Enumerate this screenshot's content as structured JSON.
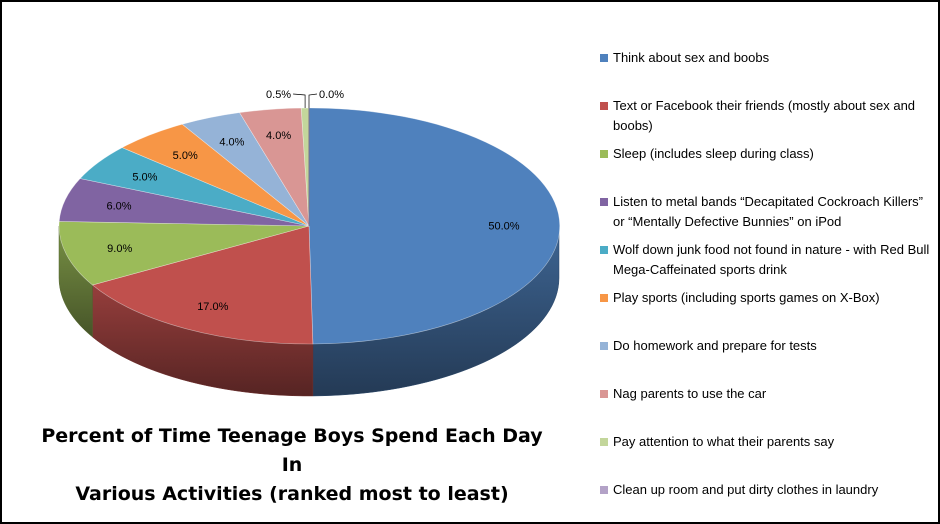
{
  "chart_data": {
    "type": "pie",
    "title": "Percent of Time Teenage Boys Spend Each Day In Various Activities (ranked most to least)",
    "title_lines": [
      "Percent of Time Teenage Boys Spend Each Day In",
      "Various Activities (ranked most to least)"
    ],
    "style": "3d",
    "legend_position": "right",
    "slices": [
      {
        "label": "Think about sex and boobs",
        "value": 50.0,
        "display": "50.0%",
        "color": "#4F81BD"
      },
      {
        "label": "Text or Facebook their friends (mostly about sex and boobs)",
        "value": 17.0,
        "display": "17.0%",
        "color": "#C0504D"
      },
      {
        "label": "Sleep (includes sleep during class)",
        "value": 9.0,
        "display": "9.0%",
        "color": "#9BBB59"
      },
      {
        "label": "Listen to metal bands “Decapitated Cockroach Killers” or “Mentally Defective Bunnies” on iPod",
        "value": 6.0,
        "display": "6.0%",
        "color": "#8064A2"
      },
      {
        "label": "Wolf down junk food not found in nature  - with Red Bull Mega-Caffeinated sports drink",
        "value": 5.0,
        "display": "5.0%",
        "color": "#4BACC6"
      },
      {
        "label": "Play sports (including sports games on X-Box)",
        "value": 5.0,
        "display": "5.0%",
        "color": "#F79646"
      },
      {
        "label": "Do homework and prepare for tests",
        "value": 4.0,
        "display": "4.0%",
        "color": "#95B3D7"
      },
      {
        "label": "Nag parents to use the car",
        "value": 4.0,
        "display": "4.0%",
        "color": "#D99694"
      },
      {
        "label": "Pay attention to what their parents say",
        "value": 0.5,
        "display": "0.5%",
        "color": "#C3D69B"
      },
      {
        "label": "Clean up room and put dirty clothes in laundry",
        "value": 0.0,
        "display": "0.0%",
        "color": "#B3A2C7"
      }
    ]
  }
}
